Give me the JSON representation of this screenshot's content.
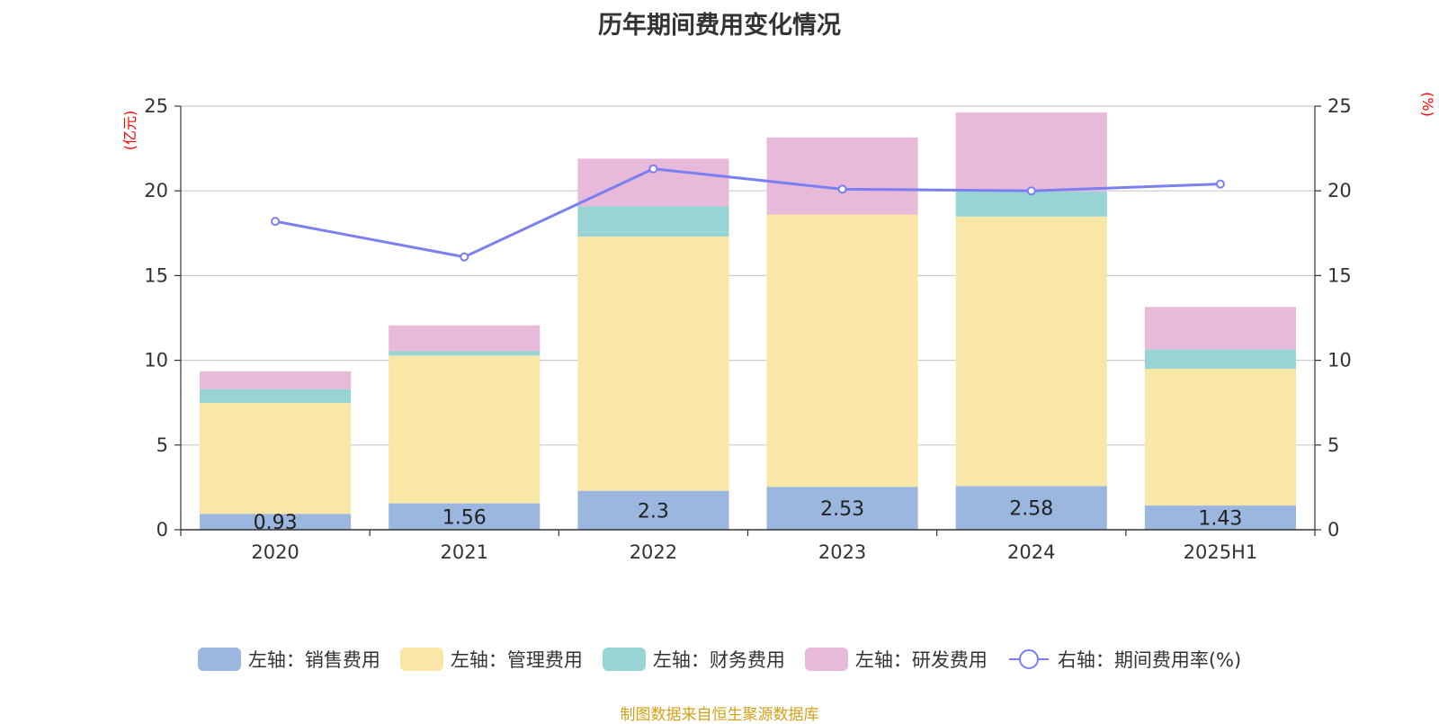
{
  "source_note": "制图数据来自恒生聚源数据库",
  "chart_data": {
    "type": "bar",
    "title": "历年期间费用变化情况",
    "categories": [
      "2020",
      "2021",
      "2022",
      "2023",
      "2024",
      "2025H1"
    ],
    "left_axis": {
      "unit": "(亿元)",
      "ylim": [
        0,
        25
      ],
      "ticks": [
        "0",
        "5",
        "10",
        "15",
        "20",
        "25"
      ]
    },
    "right_axis": {
      "unit": "(%)",
      "ylim": [
        0,
        25
      ],
      "ticks": [
        "0",
        "5",
        "10",
        "15",
        "20",
        "25"
      ]
    },
    "grid": true,
    "legend_position": "bottom",
    "series": [
      {
        "name": "左轴：销售费用",
        "axis": "left",
        "type": "bar",
        "stack": true,
        "color": "#9bb7e0",
        "values": [
          0.93,
          1.56,
          2.3,
          2.53,
          2.58,
          1.43
        ],
        "labels": [
          "0.93",
          "1.56",
          "2.3",
          "2.53",
          "2.58",
          "1.43"
        ]
      },
      {
        "name": "左轴：管理费用",
        "axis": "left",
        "type": "bar",
        "stack": true,
        "color": "#f8e7a6",
        "values": [
          6.55,
          8.72,
          15.0,
          16.07,
          15.9,
          8.07
        ]
      },
      {
        "name": "左轴：财务费用",
        "axis": "left",
        "type": "bar",
        "stack": true,
        "color": "#98d4d4",
        "values": [
          0.82,
          0.27,
          1.8,
          0.0,
          1.48,
          1.15
        ]
      },
      {
        "name": "左轴：研发费用",
        "axis": "left",
        "type": "bar",
        "stack": true,
        "color": "#e8bada",
        "values": [
          1.05,
          1.51,
          2.8,
          4.55,
          4.67,
          2.5
        ]
      },
      {
        "name": "右轴：期间费用率(%)",
        "axis": "right",
        "type": "line",
        "color": "#7b7ff0",
        "values": [
          18.2,
          16.1,
          21.3,
          20.1,
          20.0,
          20.4
        ]
      }
    ]
  }
}
